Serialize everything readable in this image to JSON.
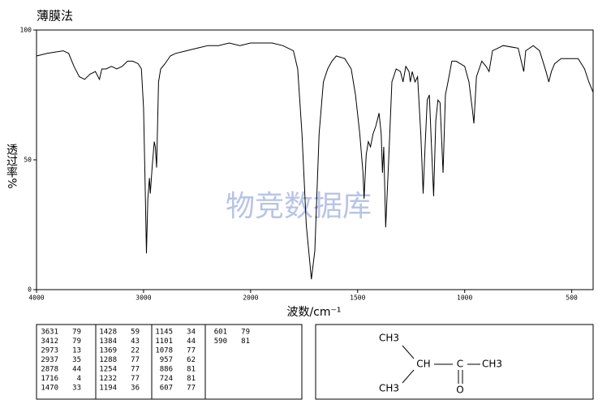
{
  "chart_data": {
    "type": "line",
    "title": "薄膜法",
    "xlabel": "波数/cm⁻¹",
    "ylabel": "透过率%",
    "watermark": "物竞数据库",
    "xlim": [
      4000,
      400
    ],
    "x_scale_change_at": 2000,
    "x_scale_ratio_below": 2,
    "xticks": [
      4000,
      3000,
      2000,
      1500,
      1000,
      500
    ],
    "ylim": [
      0,
      100
    ],
    "yticks": [
      0,
      50,
      100
    ],
    "series": [
      {
        "color": "#000000",
        "x": [
          4000,
          3900,
          3750,
          3700,
          3650,
          3600,
          3550,
          3500,
          3450,
          3412,
          3390,
          3350,
          3300,
          3250,
          3200,
          3150,
          3100,
          3050,
          3020,
          3000,
          2985,
          2973,
          2960,
          2945,
          2937,
          2920,
          2900,
          2890,
          2878,
          2860,
          2840,
          2800,
          2750,
          2700,
          2600,
          2500,
          2400,
          2300,
          2200,
          2100,
          2000,
          1900,
          1850,
          1800,
          1780,
          1760,
          1740,
          1716,
          1700,
          1680,
          1660,
          1640,
          1620,
          1600,
          1560,
          1530,
          1510,
          1490,
          1475,
          1470,
          1460,
          1450,
          1440,
          1428,
          1415,
          1400,
          1390,
          1384,
          1378,
          1369,
          1355,
          1340,
          1320,
          1300,
          1288,
          1275,
          1260,
          1254,
          1245,
          1232,
          1220,
          1205,
          1194,
          1185,
          1175,
          1165,
          1155,
          1145,
          1135,
          1125,
          1115,
          1101,
          1090,
          1078,
          1060,
          1040,
          1020,
          1000,
          980,
          965,
          957,
          945,
          920,
          900,
          886,
          870,
          820,
          750,
          730,
          724,
          715,
          680,
          650,
          620,
          607,
          595,
          580,
          550,
          500,
          470,
          440,
          420,
          400
        ],
        "values": [
          90,
          91,
          92,
          91,
          86,
          82,
          81,
          83,
          84,
          81,
          85,
          85,
          86,
          85,
          86,
          88,
          88,
          87,
          85,
          70,
          40,
          14,
          35,
          43,
          37,
          47,
          57,
          55,
          47,
          80,
          85,
          87,
          90,
          91,
          92,
          93,
          94,
          94,
          95,
          94,
          95,
          95,
          94,
          92,
          85,
          60,
          25,
          4,
          15,
          60,
          80,
          85,
          88,
          90,
          89,
          85,
          75,
          60,
          45,
          35,
          52,
          57,
          55,
          60,
          63,
          68,
          60,
          45,
          55,
          24,
          50,
          80,
          85,
          84,
          80,
          86,
          84,
          80,
          84,
          80,
          82,
          60,
          37,
          55,
          73,
          75,
          55,
          36,
          65,
          73,
          72,
          45,
          75,
          80,
          88,
          88,
          87,
          86,
          80,
          70,
          64,
          82,
          88,
          86,
          84,
          92,
          94,
          93,
          86,
          84,
          92,
          94,
          92,
          84,
          80,
          84,
          87,
          89,
          89,
          89,
          85,
          80,
          76
        ]
      }
    ]
  },
  "peak_table": [
    [
      3631,
      79
    ],
    [
      3412,
      79
    ],
    [
      2973,
      13
    ],
    [
      2937,
      35
    ],
    [
      2878,
      44
    ],
    [
      1716,
      4
    ],
    [
      1470,
      33
    ],
    [
      1428,
      59
    ],
    [
      1384,
      43
    ],
    [
      1369,
      22
    ],
    [
      1288,
      77
    ],
    [
      1254,
      77
    ],
    [
      1232,
      77
    ],
    [
      1194,
      36
    ],
    [
      1145,
      34
    ],
    [
      1101,
      44
    ],
    [
      1078,
      77
    ],
    [
      957,
      62
    ],
    [
      886,
      81
    ],
    [
      724,
      81
    ],
    [
      607,
      77
    ],
    [
      601,
      79
    ],
    [
      590,
      81
    ]
  ],
  "molecule": {
    "atoms": [
      "CH3",
      "CH",
      "C",
      "CH3",
      "O",
      "CH3"
    ]
  }
}
